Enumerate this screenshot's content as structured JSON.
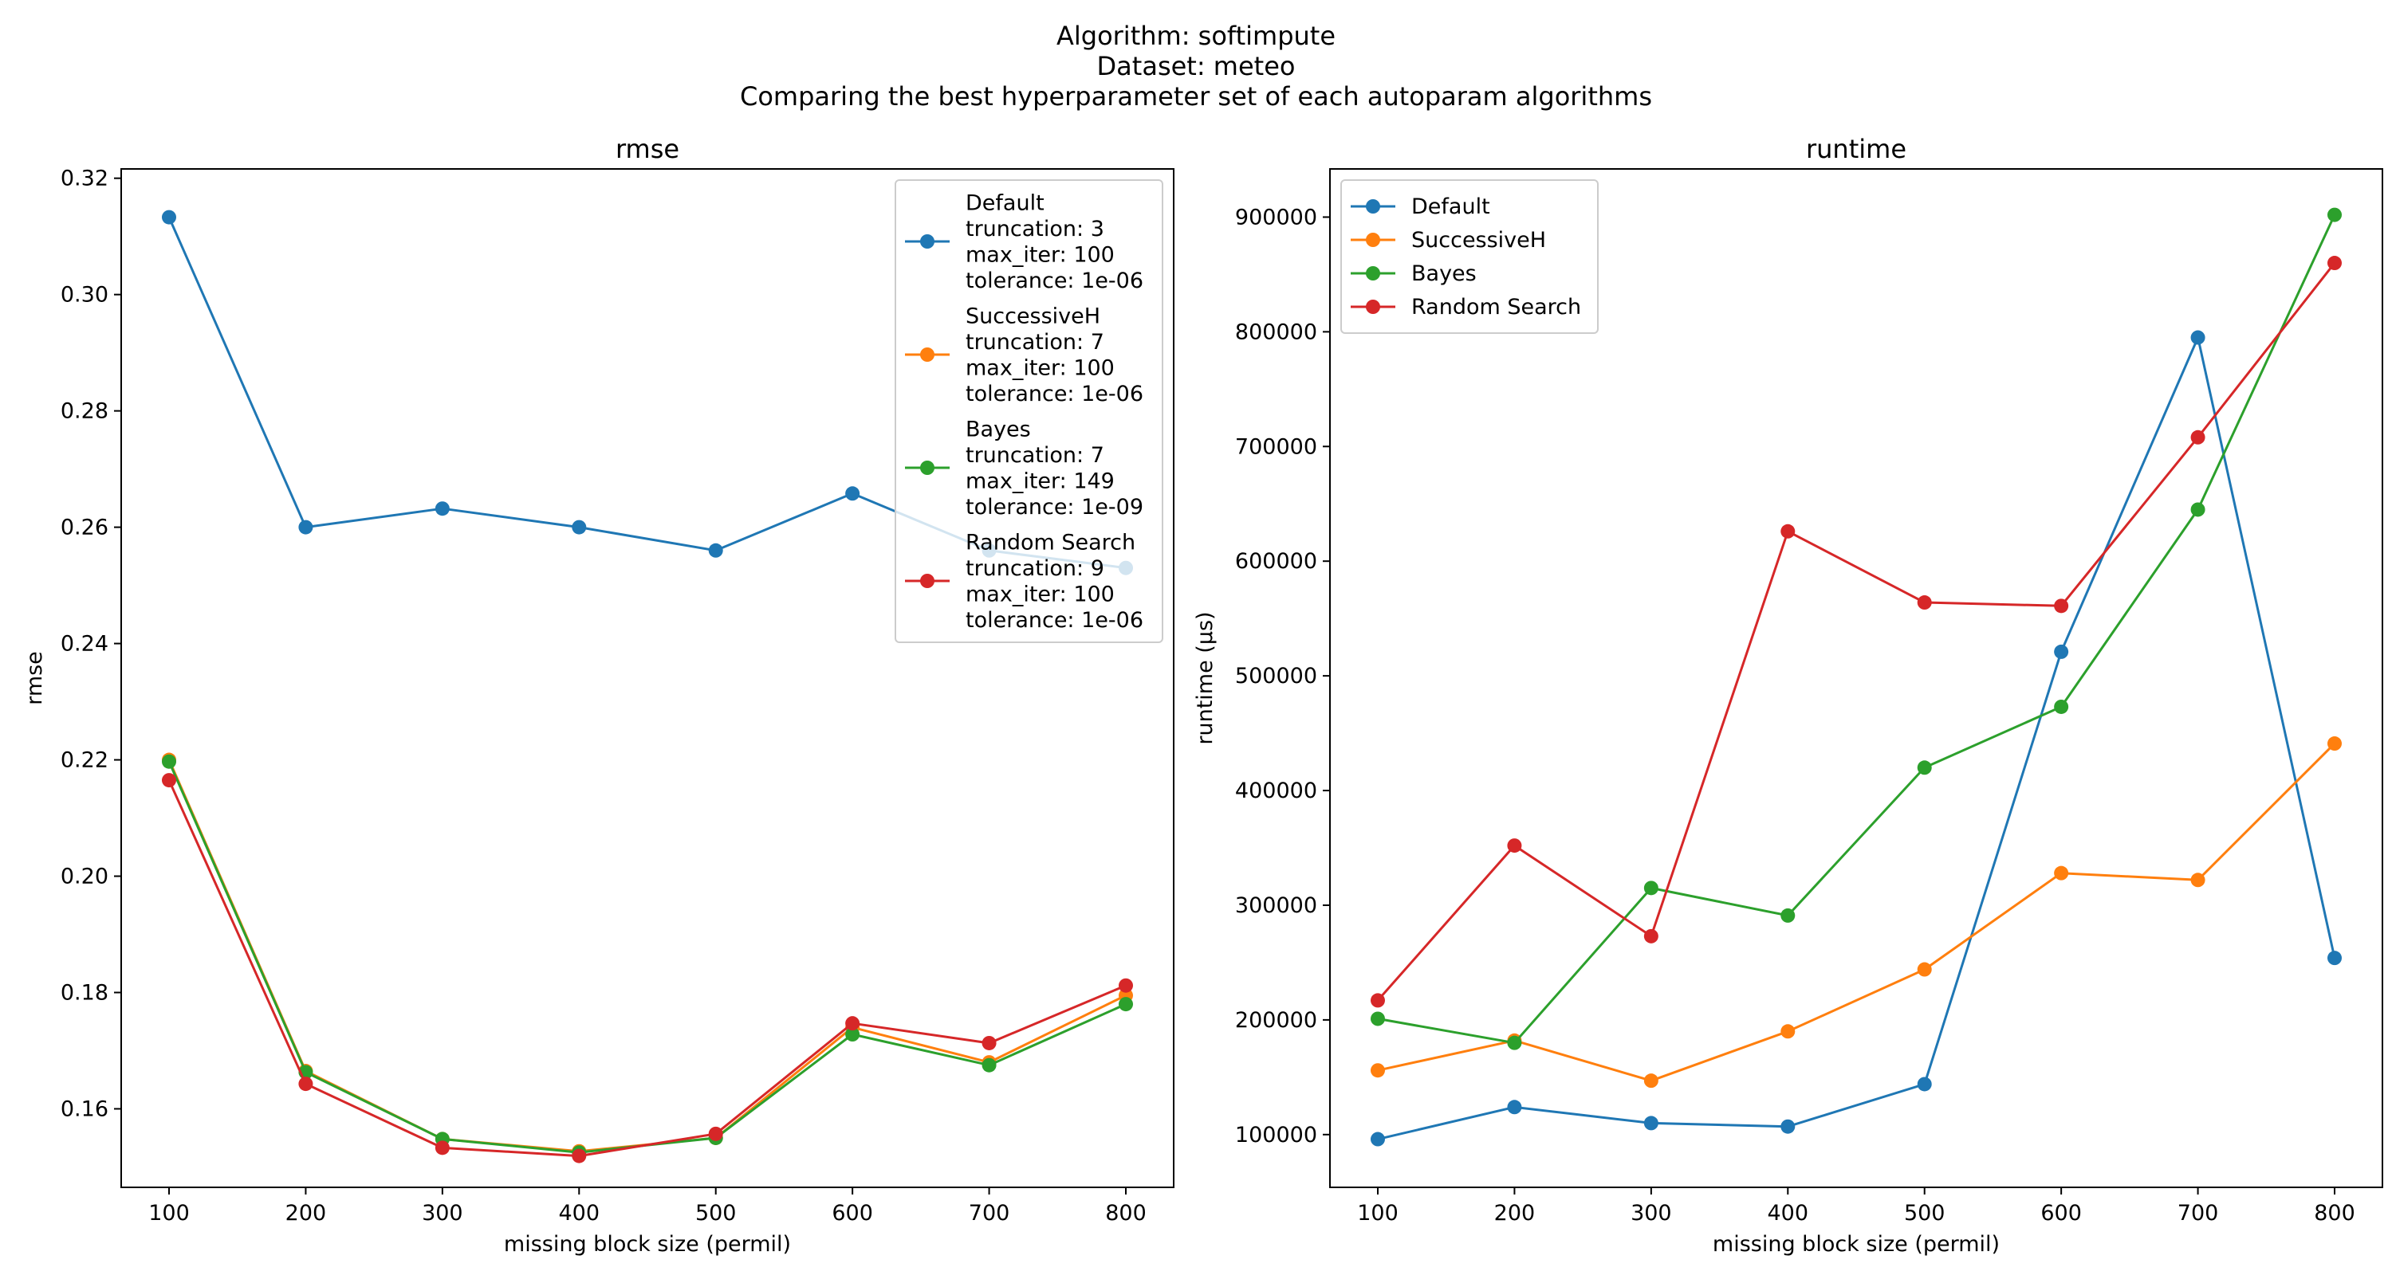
{
  "suptitle": {
    "line1": "Algorithm: softimpute",
    "line2": "Dataset: meteo",
    "line3": "Comparing the best hyperparameter set of each autoparam algorithms"
  },
  "colors": {
    "default": "#1f77b4",
    "successiveh": "#ff7f0e",
    "bayes": "#2ca02c",
    "random_search": "#d62728"
  },
  "chart_data": [
    {
      "type": "line",
      "title": "rmse",
      "xlabel": "missing block size (permil)",
      "ylabel": "rmse",
      "x": [
        100,
        200,
        300,
        400,
        500,
        600,
        700,
        800
      ],
      "xlim": [
        65,
        835
      ],
      "ylim": [
        0.1465,
        0.3216
      ],
      "xticks": [
        100,
        200,
        300,
        400,
        500,
        600,
        700,
        800
      ],
      "yticks": [
        0.16,
        0.18,
        0.2,
        0.22,
        0.24,
        0.26,
        0.28,
        0.3,
        0.32
      ],
      "ytick_labels": [
        "0.16",
        "0.18",
        "0.20",
        "0.22",
        "0.24",
        "0.26",
        "0.28",
        "0.30",
        "0.32"
      ],
      "legend_position": "top-right",
      "grid": false,
      "series": [
        {
          "name": "Default",
          "legend_lines": [
            "Default",
            "truncation: 3",
            "max_iter: 100",
            "tolerance: 1e-06"
          ],
          "color": "#1f77b4",
          "values": [
            0.3133,
            0.26,
            0.2632,
            0.26,
            0.256,
            0.2658,
            0.256,
            0.253
          ]
        },
        {
          "name": "SuccessiveH",
          "legend_lines": [
            "SuccessiveH",
            "truncation: 7",
            "max_iter: 100",
            "tolerance: 1e-06"
          ],
          "color": "#ff7f0e",
          "values": [
            0.22,
            0.1665,
            0.1548,
            0.1527,
            0.155,
            0.174,
            0.168,
            0.1795
          ]
        },
        {
          "name": "Bayes",
          "legend_lines": [
            "Bayes",
            "truncation: 7",
            "max_iter: 149",
            "tolerance: 1e-09"
          ],
          "color": "#2ca02c",
          "values": [
            0.2197,
            0.1663,
            0.1548,
            0.1525,
            0.155,
            0.1728,
            0.1675,
            0.178
          ]
        },
        {
          "name": "Random Search",
          "legend_lines": [
            "Random Search",
            "truncation: 9",
            "max_iter: 100",
            "tolerance: 1e-06"
          ],
          "color": "#d62728",
          "values": [
            0.2165,
            0.1643,
            0.1533,
            0.1519,
            0.1557,
            0.1747,
            0.1713,
            0.1812
          ]
        }
      ]
    },
    {
      "type": "line",
      "title": "runtime",
      "xlabel": "missing block size (permil)",
      "ylabel": "runtime (µs)",
      "x": [
        100,
        200,
        300,
        400,
        500,
        600,
        700,
        800
      ],
      "xlim": [
        65,
        835
      ],
      "ylim": [
        54000,
        942000
      ],
      "xticks": [
        100,
        200,
        300,
        400,
        500,
        600,
        700,
        800
      ],
      "yticks": [
        100000,
        200000,
        300000,
        400000,
        500000,
        600000,
        700000,
        800000,
        900000
      ],
      "ytick_labels": [
        "100000",
        "200000",
        "300000",
        "400000",
        "500000",
        "600000",
        "700000",
        "800000",
        "900000"
      ],
      "legend_position": "top-left",
      "grid": false,
      "series": [
        {
          "name": "Default",
          "legend_lines": [
            "Default"
          ],
          "color": "#1f77b4",
          "values": [
            96000,
            124000,
            110000,
            107000,
            144000,
            521000,
            795000,
            254000
          ]
        },
        {
          "name": "SuccessiveH",
          "legend_lines": [
            "SuccessiveH"
          ],
          "color": "#ff7f0e",
          "values": [
            156000,
            182000,
            147000,
            190000,
            244000,
            328000,
            322000,
            441000
          ]
        },
        {
          "name": "Bayes",
          "legend_lines": [
            "Bayes"
          ],
          "color": "#2ca02c",
          "values": [
            201000,
            180000,
            315000,
            291000,
            420000,
            473000,
            645000,
            902000
          ]
        },
        {
          "name": "Random Search",
          "legend_lines": [
            "Random Search"
          ],
          "color": "#d62728",
          "values": [
            217000,
            352000,
            273000,
            626000,
            564000,
            561000,
            708000,
            860000
          ]
        }
      ]
    }
  ]
}
